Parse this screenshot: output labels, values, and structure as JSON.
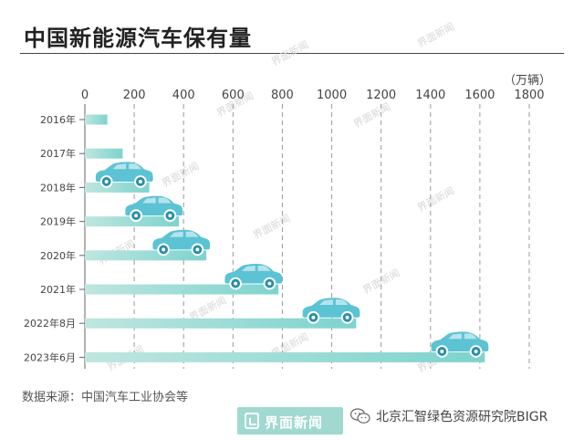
{
  "title": "中国新能源汽车保有量",
  "source": "数据来源：中国汽车工业协会等",
  "logo_text": "界面新闻",
  "watermark": "界面新闻",
  "credit": "北京汇智绿色资源研究院BIGR",
  "colors": {
    "bar_start": "#bfe6df",
    "bar_end": "#7dd3ce",
    "car_body": "#5bc3d4",
    "car_wheel": "#2b8fa6",
    "grid": "#9a9a9a",
    "accent": "#9fd9cf"
  },
  "icons": [
    "car-icon",
    "wechat-icon",
    "jiemian-logo-icon"
  ],
  "chart_data": {
    "type": "bar",
    "orientation": "horizontal",
    "unit": "（万辆）",
    "categories": [
      "2016年",
      "2017年",
      "2018年",
      "2019年",
      "2020年",
      "2021年",
      "2022年8月",
      "2023年6月"
    ],
    "values": [
      91,
      153,
      261,
      381,
      492,
      784,
      1099,
      1620
    ],
    "xlim": [
      0,
      1800
    ],
    "xticks": [
      "0",
      "200",
      "400",
      "600",
      "800",
      "1000",
      "1200",
      "1400",
      "1600",
      "1800"
    ],
    "grid": "vertical-dashed",
    "legend": "none"
  }
}
